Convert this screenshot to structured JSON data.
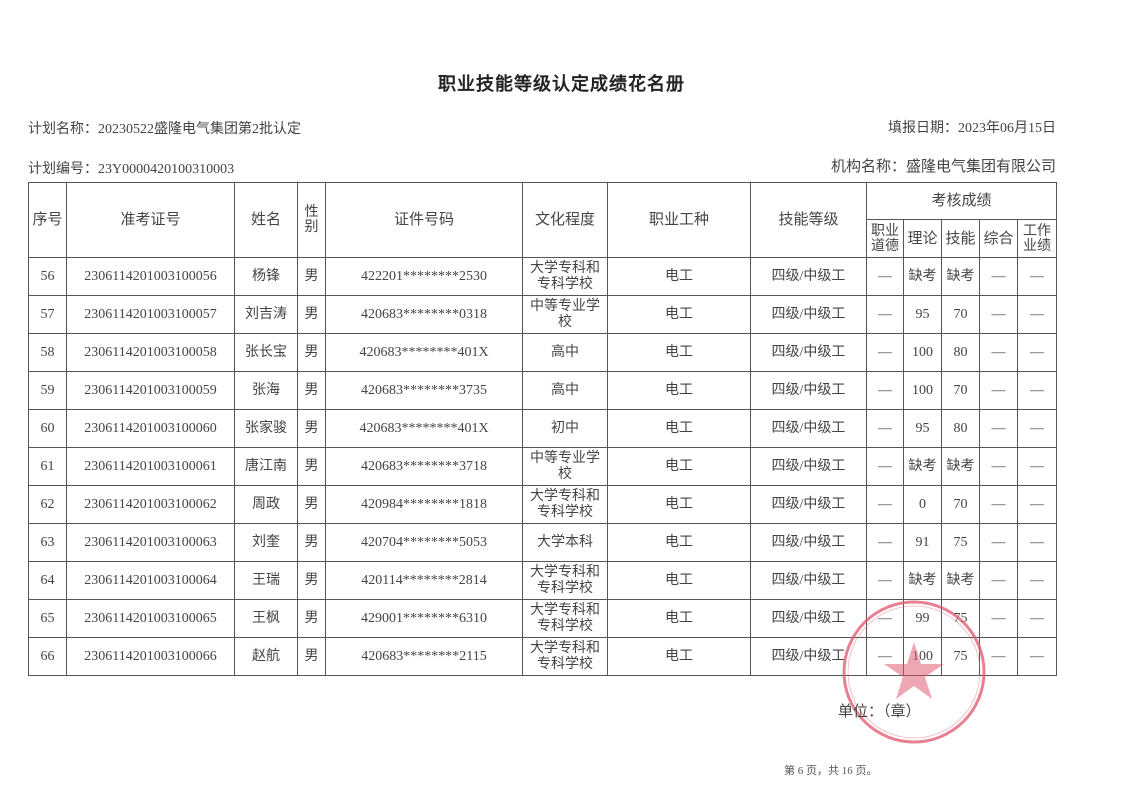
{
  "title": "职业技能等级认定成绩花名册",
  "plan_name": "计划名称：20230522盛隆电气集团第2批认定",
  "fill_date": "填报日期：2023年06月15日",
  "plan_number": "计划编号：23Y0000420100310003",
  "org_name": "机构名称：盛隆电气集团有限公司",
  "headers": {
    "seq": "序号",
    "ticket": "准考证号",
    "name": "姓名",
    "gender": "性别",
    "id": "证件号码",
    "education": "文化程度",
    "occupation": "职业工种",
    "level": "技能等级",
    "scores": "考核成绩",
    "ethics": "职业道德",
    "theory": "理论",
    "skill": "技能",
    "overall": "综合",
    "work": "工作业绩"
  },
  "rows": [
    {
      "seq": "56",
      "ticket": "2306114201003100056",
      "name": "杨锋",
      "gender": "男",
      "id": "422201********2530",
      "education": "大学专科和专科学校",
      "occupation": "电工",
      "level": "四级/中级工",
      "ethics": "—",
      "theory": "缺考",
      "skill": "缺考",
      "overall": "—",
      "work": "—"
    },
    {
      "seq": "57",
      "ticket": "2306114201003100057",
      "name": "刘吉涛",
      "gender": "男",
      "id": "420683********0318",
      "education": "中等专业学校",
      "occupation": "电工",
      "level": "四级/中级工",
      "ethics": "—",
      "theory": "95",
      "skill": "70",
      "overall": "—",
      "work": "—"
    },
    {
      "seq": "58",
      "ticket": "2306114201003100058",
      "name": "张长宝",
      "gender": "男",
      "id": "420683********401X",
      "education": "高中",
      "occupation": "电工",
      "level": "四级/中级工",
      "ethics": "—",
      "theory": "100",
      "skill": "80",
      "overall": "—",
      "work": "—"
    },
    {
      "seq": "59",
      "ticket": "2306114201003100059",
      "name": "张海",
      "gender": "男",
      "id": "420683********3735",
      "education": "高中",
      "occupation": "电工",
      "level": "四级/中级工",
      "ethics": "—",
      "theory": "100",
      "skill": "70",
      "overall": "—",
      "work": "—"
    },
    {
      "seq": "60",
      "ticket": "2306114201003100060",
      "name": "张家骏",
      "gender": "男",
      "id": "420683********401X",
      "education": "初中",
      "occupation": "电工",
      "level": "四级/中级工",
      "ethics": "—",
      "theory": "95",
      "skill": "80",
      "overall": "—",
      "work": "—"
    },
    {
      "seq": "61",
      "ticket": "2306114201003100061",
      "name": "唐江南",
      "gender": "男",
      "id": "420683********3718",
      "education": "中等专业学校",
      "occupation": "电工",
      "level": "四级/中级工",
      "ethics": "—",
      "theory": "缺考",
      "skill": "缺考",
      "overall": "—",
      "work": "—"
    },
    {
      "seq": "62",
      "ticket": "2306114201003100062",
      "name": "周政",
      "gender": "男",
      "id": "420984********1818",
      "education": "大学专科和专科学校",
      "occupation": "电工",
      "level": "四级/中级工",
      "ethics": "—",
      "theory": "0",
      "skill": "70",
      "overall": "—",
      "work": "—"
    },
    {
      "seq": "63",
      "ticket": "2306114201003100063",
      "name": "刘奎",
      "gender": "男",
      "id": "420704********5053",
      "education": "大学本科",
      "occupation": "电工",
      "level": "四级/中级工",
      "ethics": "—",
      "theory": "91",
      "skill": "75",
      "overall": "—",
      "work": "—"
    },
    {
      "seq": "64",
      "ticket": "2306114201003100064",
      "name": "王瑞",
      "gender": "男",
      "id": "420114********2814",
      "education": "大学专科和专科学校",
      "occupation": "电工",
      "level": "四级/中级工",
      "ethics": "—",
      "theory": "缺考",
      "skill": "缺考",
      "overall": "—",
      "work": "—"
    },
    {
      "seq": "65",
      "ticket": "2306114201003100065",
      "name": "王枫",
      "gender": "男",
      "id": "429001********6310",
      "education": "大学专科和专科学校",
      "occupation": "电工",
      "level": "四级/中级工",
      "ethics": "—",
      "theory": "99",
      "skill": "75",
      "overall": "—",
      "work": "—"
    },
    {
      "seq": "66",
      "ticket": "2306114201003100066",
      "name": "赵航",
      "gender": "男",
      "id": "420683********2115",
      "education": "大学专科和专科学校",
      "occupation": "电工",
      "level": "四级/中级工",
      "ethics": "—",
      "theory": "100",
      "skill": "75",
      "overall": "—",
      "work": "—"
    }
  ],
  "unit_seal": "单位：（章）",
  "seal_text": "盛隆电气集团有限公司",
  "seal_color": "#e0566e",
  "footer": "第 6 页，共 16 页。"
}
